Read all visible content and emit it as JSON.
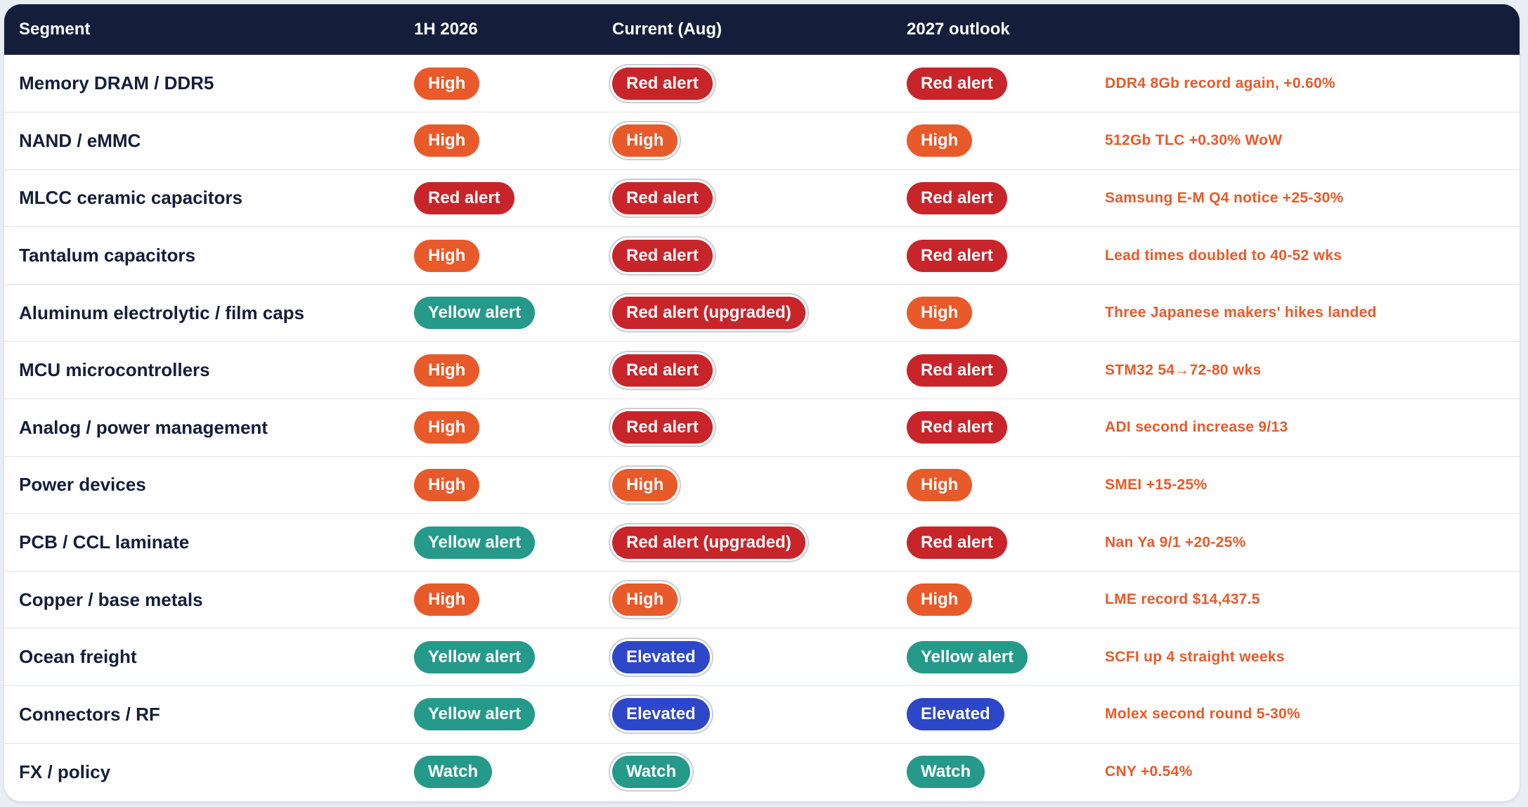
{
  "colors": {
    "header_bg": "#141e3a",
    "note_text": "#e85a2a",
    "statuses": {
      "High": "#e85a2a",
      "Red alert": "#c8252b",
      "Red alert (upgraded)": "#c8252b",
      "Yellow alert": "#259a8a",
      "Elevated": "#2d47c8",
      "Watch": "#259a8a"
    }
  },
  "table": {
    "headers": {
      "segment": "Segment",
      "h1_2026": "1H 2026",
      "current": "Current (Aug)",
      "outlook_2027": "2027 outlook",
      "note": ""
    },
    "rows": [
      {
        "segment": "Memory DRAM / DDR5",
        "h1_2026": "High",
        "current": "Red alert",
        "outlook_2027": "Red alert",
        "note": "DDR4 8Gb record again, +0.60%"
      },
      {
        "segment": "NAND / eMMC",
        "h1_2026": "High",
        "current": "High",
        "outlook_2027": "High",
        "note": "512Gb TLC +0.30% WoW"
      },
      {
        "segment": "MLCC ceramic capacitors",
        "h1_2026": "Red alert",
        "current": "Red alert",
        "outlook_2027": "Red alert",
        "note": "Samsung E-M Q4 notice +25-30%"
      },
      {
        "segment": "Tantalum capacitors",
        "h1_2026": "High",
        "current": "Red alert",
        "outlook_2027": "Red alert",
        "note": "Lead times doubled to 40-52 wks"
      },
      {
        "segment": "Aluminum electrolytic / film caps",
        "h1_2026": "Yellow alert",
        "current": "Red alert (upgraded)",
        "outlook_2027": "High",
        "note": "Three Japanese makers' hikes landed"
      },
      {
        "segment": "MCU microcontrollers",
        "h1_2026": "High",
        "current": "Red alert",
        "outlook_2027": "Red alert",
        "note": "STM32 54→72-80 wks"
      },
      {
        "segment": "Analog / power management",
        "h1_2026": "High",
        "current": "Red alert",
        "outlook_2027": "Red alert",
        "note": "ADI second increase 9/13"
      },
      {
        "segment": "Power devices",
        "h1_2026": "High",
        "current": "High",
        "outlook_2027": "High",
        "note": "SMEI +15-25%"
      },
      {
        "segment": "PCB / CCL laminate",
        "h1_2026": "Yellow alert",
        "current": "Red alert (upgraded)",
        "outlook_2027": "Red alert",
        "note": "Nan Ya 9/1 +20-25%"
      },
      {
        "segment": "Copper / base metals",
        "h1_2026": "High",
        "current": "High",
        "outlook_2027": "High",
        "note": "LME record $14,437.5"
      },
      {
        "segment": "Ocean freight",
        "h1_2026": "Yellow alert",
        "current": "Elevated",
        "outlook_2027": "Yellow alert",
        "note": "SCFI up 4 straight weeks"
      },
      {
        "segment": "Connectors / RF",
        "h1_2026": "Yellow alert",
        "current": "Elevated",
        "outlook_2027": "Elevated",
        "note": "Molex second round 5-30%"
      },
      {
        "segment": "FX / policy",
        "h1_2026": "Watch",
        "current": "Watch",
        "outlook_2027": "Watch",
        "note": "CNY +0.54%"
      }
    ]
  }
}
